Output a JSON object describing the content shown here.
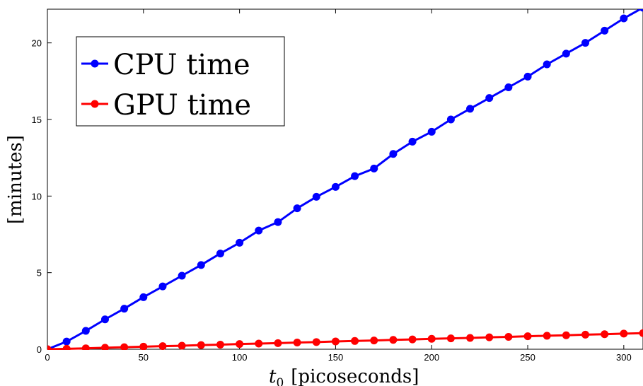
{
  "chart_data": {
    "type": "line",
    "title": "",
    "xlabel": "t0 [picoseconds]",
    "xlabel_main": "t",
    "xlabel_sub": "0",
    "xlabel_rest": "[picoseconds]",
    "ylabel": "[minutes]",
    "xlim": [
      0,
      310
    ],
    "ylim": [
      0,
      22.2
    ],
    "xticks": [
      0,
      50,
      100,
      150,
      200,
      250,
      300
    ],
    "yticks": [
      0,
      5,
      10,
      15,
      20
    ],
    "grid": false,
    "legend_position": "top-left",
    "x": [
      0,
      10,
      20,
      30,
      40,
      50,
      60,
      70,
      80,
      90,
      100,
      110,
      120,
      130,
      140,
      150,
      160,
      170,
      180,
      190,
      200,
      210,
      220,
      230,
      240,
      250,
      260,
      270,
      280,
      290,
      300,
      310
    ],
    "series": [
      {
        "name": "CPU time",
        "color": "#0000ff",
        "values": [
          0,
          0.5,
          1.2,
          1.95,
          2.65,
          3.4,
          4.1,
          4.8,
          5.5,
          6.25,
          6.95,
          7.75,
          8.3,
          9.2,
          9.95,
          10.6,
          11.3,
          11.8,
          12.75,
          13.55,
          14.2,
          15.0,
          15.7,
          16.4,
          17.1,
          17.8,
          18.6,
          19.3,
          20.0,
          20.8,
          21.6,
          22.3
        ]
      },
      {
        "name": "GPU time",
        "color": "#ff0000",
        "values": [
          0,
          0.03,
          0.06,
          0.1,
          0.13,
          0.17,
          0.2,
          0.23,
          0.27,
          0.3,
          0.34,
          0.37,
          0.4,
          0.44,
          0.47,
          0.51,
          0.54,
          0.57,
          0.61,
          0.64,
          0.68,
          0.71,
          0.74,
          0.78,
          0.81,
          0.85,
          0.88,
          0.91,
          0.95,
          0.98,
          1.02,
          1.05
        ]
      }
    ]
  }
}
